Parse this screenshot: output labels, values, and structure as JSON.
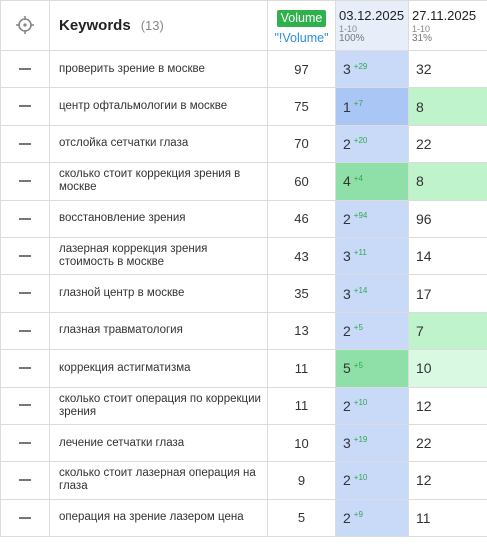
{
  "header": {
    "keywords_title": "Keywords",
    "keywords_count": "(13)",
    "volume_badge": "Volume",
    "volume_filter": "\"!Volume\"",
    "dates": [
      {
        "label": "03.12.2025",
        "range": "1-10",
        "percent": "100%"
      },
      {
        "label": "27.11.2025",
        "range": "1-10",
        "percent": "31%"
      }
    ]
  },
  "icons": {
    "header": "crosshair-icon",
    "row_action": "minus-icon"
  },
  "colors": {
    "volume_badge": "#2fb24c",
    "filter_link": "#2b8fd6",
    "current_column": "#c9daf8",
    "top5": "#8ee0a8",
    "delta": "#2fa84f"
  },
  "rows": [
    {
      "keyword": "проверить зрение в москве",
      "volume": "97",
      "pos1": "3",
      "delta": "29",
      "pos2": "32"
    },
    {
      "keyword": "центр офтальмологии в москве",
      "volume": "75",
      "pos1": "1",
      "delta": "7",
      "pos2": "8"
    },
    {
      "keyword": "отслойка сетчатки глаза",
      "volume": "70",
      "pos1": "2",
      "delta": "20",
      "pos2": "22"
    },
    {
      "keyword": "сколько стоит коррекция зрения в москве",
      "volume": "60",
      "pos1": "4",
      "delta": "4",
      "pos2": "8"
    },
    {
      "keyword": "восстановление зрения",
      "volume": "46",
      "pos1": "2",
      "delta": "94",
      "pos2": "96"
    },
    {
      "keyword": "лазерная коррекция зрения стоимость в москве",
      "volume": "43",
      "pos1": "3",
      "delta": "11",
      "pos2": "14"
    },
    {
      "keyword": "глазной центр в москве",
      "volume": "35",
      "pos1": "3",
      "delta": "14",
      "pos2": "17"
    },
    {
      "keyword": "глазная травматология",
      "volume": "13",
      "pos1": "2",
      "delta": "5",
      "pos2": "7"
    },
    {
      "keyword": "коррекция астигматизма",
      "volume": "11",
      "pos1": "5",
      "delta": "5",
      "pos2": "10"
    },
    {
      "keyword": "сколько стоит операция по коррекции зрения",
      "volume": "11",
      "pos1": "2",
      "delta": "10",
      "pos2": "12"
    },
    {
      "keyword": "лечение сетчатки глаза",
      "volume": "10",
      "pos1": "3",
      "delta": "19",
      "pos2": "22"
    },
    {
      "keyword": "сколько стоит лазерная операция на глаза",
      "volume": "9",
      "pos1": "2",
      "delta": "10",
      "pos2": "12"
    },
    {
      "keyword": "операция на зрение лазером цена",
      "volume": "5",
      "pos1": "2",
      "delta": "9",
      "pos2": "11"
    }
  ]
}
